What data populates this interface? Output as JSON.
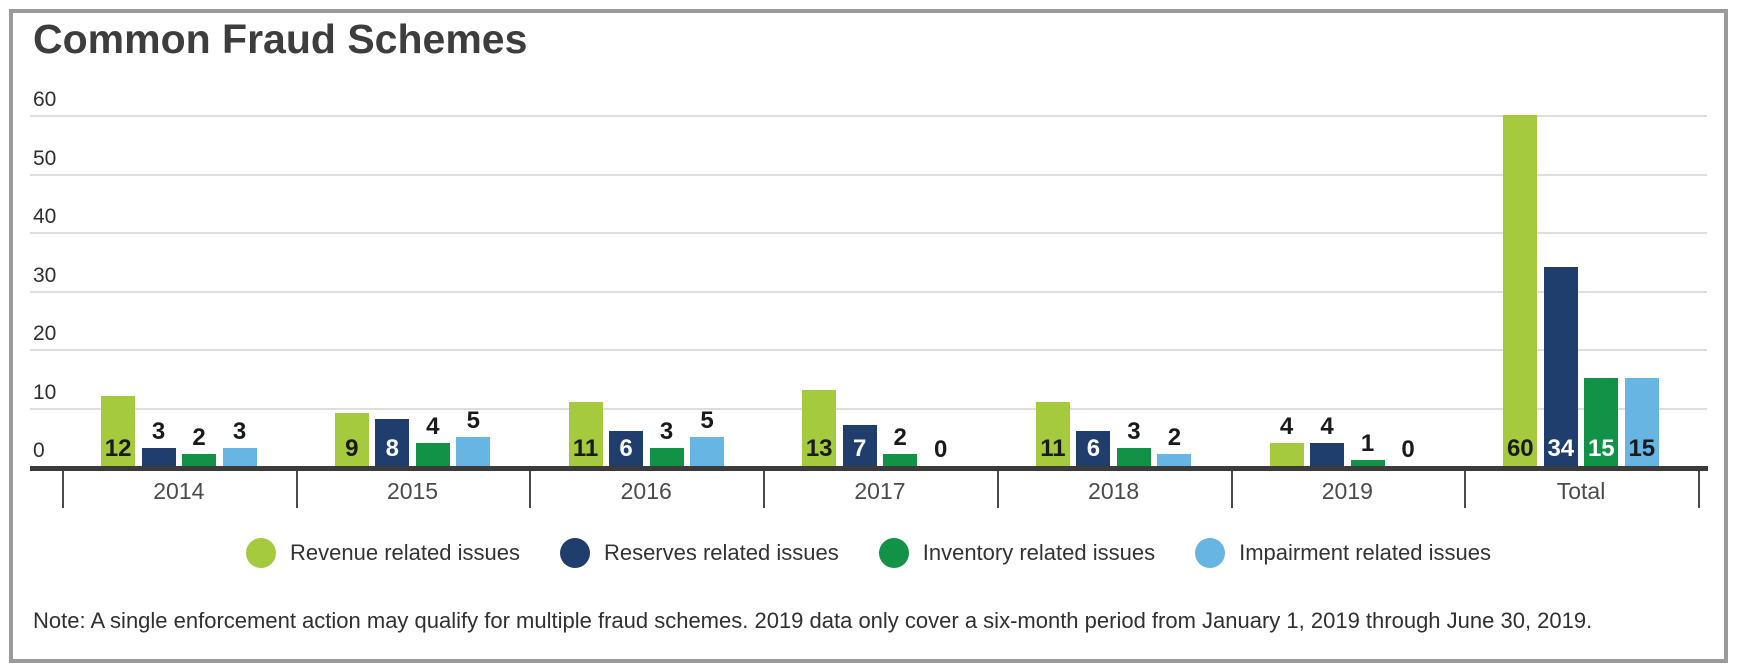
{
  "title": "Common Fraud Schemes",
  "note": "Note: A single enforcement action may qualify for multiple fraud schemes. 2019 data only cover a six-month period from January 1, 2019 through June 30, 2019.",
  "colors": {
    "axis": "#3b3b3b",
    "gridline": "#dedede",
    "tick": "#4a4a4a",
    "title_text": "#3d3d3d",
    "body_text": "#333333",
    "frame_border": "#9a9a9a",
    "bar_label_outside": "#1a1a1a"
  },
  "chart_data": {
    "type": "bar",
    "title": "Common Fraud Schemes",
    "xlabel": "",
    "ylabel": "",
    "categories": [
      "2014",
      "2015",
      "2016",
      "2017",
      "2018",
      "2019",
      "Total"
    ],
    "series": [
      {
        "name": "Revenue related issues",
        "color": "#a5ca3e",
        "label_color_inside": "#1a1a1a",
        "values": [
          12,
          9,
          11,
          13,
          11,
          4,
          60
        ]
      },
      {
        "name": "Reserves related issues",
        "color": "#1f3d6d",
        "label_color_inside": "#ffffff",
        "values": [
          3,
          8,
          6,
          7,
          6,
          4,
          34
        ]
      },
      {
        "name": "Inventory related issues",
        "color": "#119247",
        "label_color_inside": "#ffffff",
        "values": [
          2,
          4,
          3,
          2,
          3,
          1,
          15
        ]
      },
      {
        "name": "Impairment related issues",
        "color": "#66b5e3",
        "label_color_inside": "#1a1a1a",
        "values": [
          3,
          5,
          5,
          0,
          2,
          0,
          15
        ]
      }
    ],
    "yticks": [
      0,
      10,
      20,
      30,
      40,
      50,
      60
    ],
    "ylim": [
      0,
      60
    ],
    "grid": true,
    "legend_position": "bottom",
    "bar_label_inside_min_value": 6
  }
}
